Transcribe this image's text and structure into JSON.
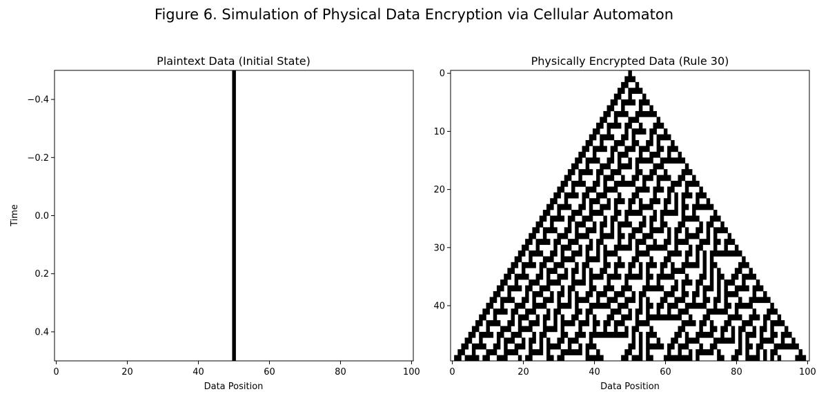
{
  "figure_title": "Figure 6. Simulation of Physical Data Encryption via Cellular Automaton",
  "colors": {
    "on": "#000000",
    "off": "#ffffff"
  },
  "chart_data": [
    {
      "type": "heatmap",
      "title": "Plaintext Data (Initial State)",
      "xlabel": "Data Position",
      "ylabel": "Time",
      "xlim": [
        -0.5,
        100.5
      ],
      "ylim": [
        0.5,
        -0.5
      ],
      "xticks": [
        0,
        20,
        40,
        60,
        80,
        100
      ],
      "xtick_labels": [
        "0",
        "20",
        "40",
        "60",
        "80",
        "100"
      ],
      "yticks": [
        -0.4,
        -0.2,
        0.0,
        0.2,
        0.4
      ],
      "ytick_labels": [
        "−0.4",
        "−0.2",
        "0.0",
        "0.2",
        "0.4"
      ],
      "width": 101,
      "rows": 1,
      "active_cells": [
        50
      ],
      "colormap": "binary",
      "grid": false
    },
    {
      "type": "heatmap",
      "title": "Physically Encrypted Data (Rule 30)",
      "xlabel": "Data Position",
      "ylabel": "",
      "xlim": [
        -0.5,
        100.5
      ],
      "ylim": [
        49.5,
        -0.5
      ],
      "xticks": [
        0,
        20,
        40,
        60,
        80,
        100
      ],
      "xtick_labels": [
        "0",
        "20",
        "40",
        "60",
        "80",
        "100"
      ],
      "yticks": [
        0,
        10,
        20,
        30,
        40
      ],
      "ytick_labels": [
        "0",
        "10",
        "20",
        "30",
        "40"
      ],
      "width": 101,
      "rows": 50,
      "rule": 30,
      "initial_active": [
        50
      ],
      "boundary": "zero",
      "colormap": "binary",
      "grid": false
    }
  ]
}
